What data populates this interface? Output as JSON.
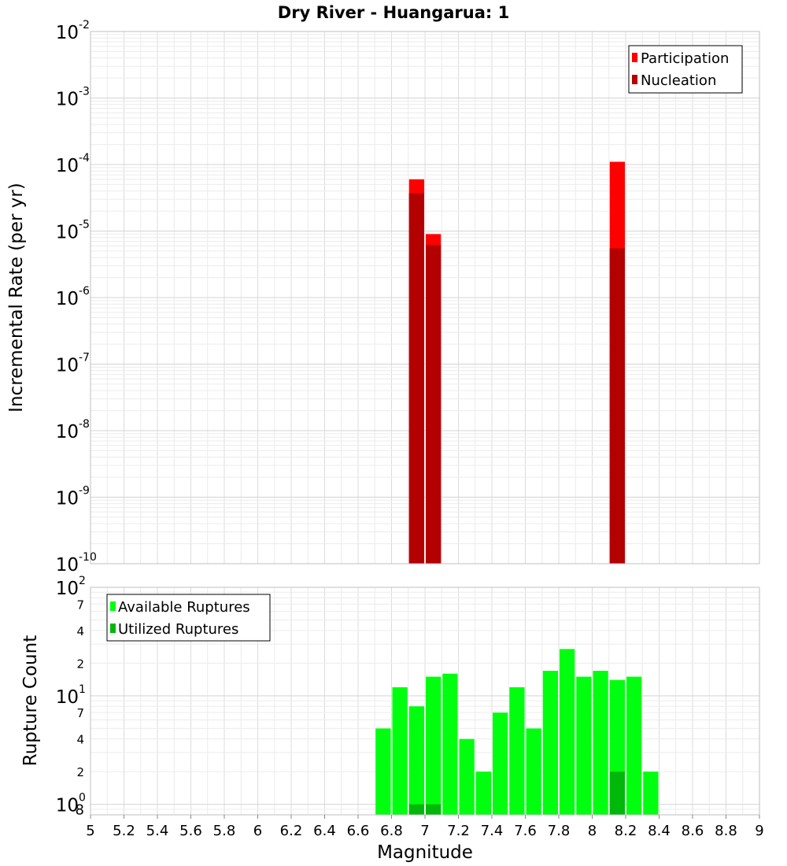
{
  "chart_data": [
    {
      "type": "bar",
      "title": "Dry River - Huangarua: 1",
      "xlabel": "",
      "ylabel": "Incremental Rate (per yr)",
      "yscale": "log",
      "xlim": [
        5,
        9
      ],
      "ylim": [
        1e-10,
        0.01
      ],
      "bar_width": 0.1,
      "y_ticks": [
        {
          "base": "10",
          "exp": "-10",
          "value": 1e-10
        },
        {
          "base": "10",
          "exp": "-9",
          "value": 1e-09
        },
        {
          "base": "10",
          "exp": "-8",
          "value": 1e-08
        },
        {
          "base": "10",
          "exp": "-7",
          "value": 1e-07
        },
        {
          "base": "10",
          "exp": "-6",
          "value": 1e-06
        },
        {
          "base": "10",
          "exp": "-5",
          "value": 1e-05
        },
        {
          "base": "10",
          "exp": "-4",
          "value": 0.0001
        },
        {
          "base": "10",
          "exp": "-3",
          "value": 0.001
        },
        {
          "base": "10",
          "exp": "-2",
          "value": 0.01
        }
      ],
      "legend": {
        "position": "top-right"
      },
      "series": [
        {
          "name": "Participation",
          "color": "#ff0000",
          "x": [
            6.95,
            7.05,
            8.15
          ],
          "values": [
            6e-05,
            9e-06,
            0.00011
          ]
        },
        {
          "name": "Nucleation",
          "color": "#b30000",
          "x": [
            6.95,
            7.05,
            8.15
          ],
          "values": [
            3.7e-05,
            6.2e-06,
            5.5e-06
          ]
        }
      ]
    },
    {
      "type": "bar",
      "xlabel": "Magnitude",
      "ylabel": "Rupture Count",
      "yscale": "log",
      "xlim": [
        5,
        9
      ],
      "ylim": [
        0.8,
        100
      ],
      "bar_width": 0.1,
      "x_ticks": [
        "5",
        "5.2",
        "5.4",
        "5.6",
        "5.8",
        "6",
        "6.2",
        "6.4",
        "6.6",
        "6.8",
        "7",
        "7.2",
        "7.4",
        "7.6",
        "7.8",
        "8",
        "8.2",
        "8.4",
        "8.6",
        "8.8",
        "9"
      ],
      "y_ticks": [
        {
          "base": "10",
          "exp": "0",
          "minor": "8",
          "value": 1
        },
        {
          "minor": "2",
          "value": 2
        },
        {
          "minor": "4",
          "value": 4
        },
        {
          "minor": "7",
          "value": 7
        },
        {
          "base": "10",
          "exp": "1",
          "value": 10
        },
        {
          "minor": "2",
          "value": 20
        },
        {
          "minor": "4",
          "value": 40
        },
        {
          "minor": "7",
          "value": 70
        },
        {
          "base": "10",
          "exp": "2",
          "value": 100
        }
      ],
      "legend": {
        "position": "top-left"
      },
      "series": [
        {
          "name": "Available Ruptures",
          "color": "#00ff0f",
          "x": [
            6.75,
            6.85,
            6.95,
            7.05,
            7.15,
            7.25,
            7.35,
            7.45,
            7.55,
            7.65,
            7.75,
            7.85,
            7.95,
            8.05,
            8.15,
            8.25,
            8.35
          ],
          "values": [
            5,
            12,
            8,
            15,
            16,
            4,
            2,
            7,
            12,
            5,
            17,
            27,
            15,
            17,
            14,
            15,
            2
          ]
        },
        {
          "name": "Utilized Ruptures",
          "color": "#00b80a",
          "x": [
            6.95,
            7.05,
            8.15
          ],
          "values": [
            1,
            1,
            2
          ]
        }
      ]
    }
  ]
}
